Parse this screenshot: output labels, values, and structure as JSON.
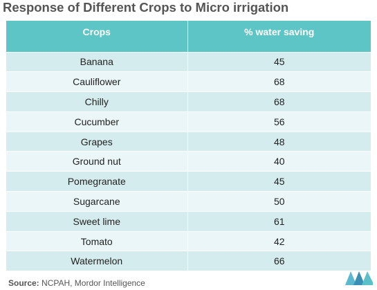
{
  "title": "Response of Different Crops to Micro irrigation",
  "chart_data": {
    "type": "table",
    "columns": [
      "Crops",
      "% water saving"
    ],
    "rows": [
      [
        "Banana",
        "45"
      ],
      [
        "Cauliflower",
        "68"
      ],
      [
        "Chilly",
        "68"
      ],
      [
        "Cucumber",
        "56"
      ],
      [
        "Grapes",
        "48"
      ],
      [
        "Ground nut",
        "40"
      ],
      [
        "Pomegranate",
        "45"
      ],
      [
        "Sugarcane",
        "50"
      ],
      [
        "Sweet lime",
        "61"
      ],
      [
        "Tomato",
        "42"
      ],
      [
        "Watermelon",
        "66"
      ]
    ]
  },
  "source": {
    "label": "Source:",
    "text": " NCPAH, Mordor Intelligence"
  },
  "logo": {
    "icon": "mordor-intelligence-logo-icon",
    "color": "#4db3c8"
  },
  "colors": {
    "header_bg": "#5ec5c6",
    "row_odd": "#d5ecee",
    "row_even": "#eaf6f7"
  }
}
